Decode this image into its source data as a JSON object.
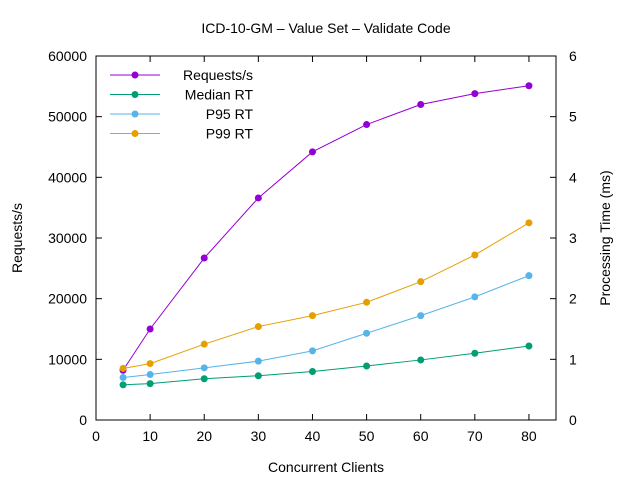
{
  "chart_data": {
    "type": "line",
    "title": "ICD-10-GM – Value Set – Validate Code",
    "xlabel": "Concurrent Clients",
    "ylabel": "Requests/s",
    "y2label": "Processing Time (ms)",
    "x": [
      5,
      10,
      20,
      30,
      40,
      50,
      60,
      70,
      80
    ],
    "xlim": [
      0,
      85
    ],
    "ylim": [
      0,
      60000
    ],
    "y2lim": [
      0,
      6
    ],
    "xticks": [
      0,
      10,
      20,
      30,
      40,
      50,
      60,
      70,
      80
    ],
    "yticks": [
      0,
      10000,
      20000,
      30000,
      40000,
      50000,
      60000
    ],
    "y2ticks": [
      0,
      1,
      2,
      3,
      4,
      5,
      6
    ],
    "grid": false,
    "legend_position": "top-left",
    "series": [
      {
        "name": "Requests/s",
        "axis": "left",
        "color": "#9400d3",
        "values": [
          8200,
          15000,
          26700,
          36600,
          44200,
          48700,
          52000,
          53800,
          55100
        ]
      },
      {
        "name": "Median RT",
        "axis": "right",
        "color": "#009e73",
        "values": [
          0.58,
          0.6,
          0.68,
          0.73,
          0.8,
          0.89,
          0.99,
          1.1,
          1.22
        ]
      },
      {
        "name": "P95 RT",
        "axis": "right",
        "color": "#56b4e9",
        "values": [
          0.7,
          0.75,
          0.86,
          0.97,
          1.14,
          1.43,
          1.72,
          2.03,
          2.38
        ]
      },
      {
        "name": "P99 RT",
        "axis": "right",
        "color": "#e69f00",
        "values": [
          0.85,
          0.93,
          1.25,
          1.54,
          1.72,
          1.94,
          2.28,
          2.72,
          3.25
        ]
      }
    ]
  }
}
